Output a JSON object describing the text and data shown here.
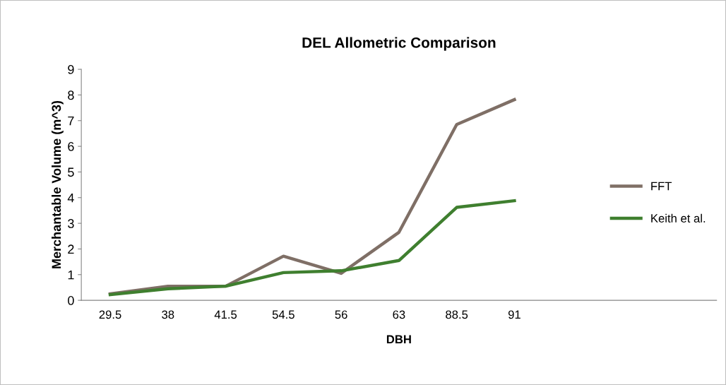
{
  "chart_data": {
    "type": "line",
    "title": "DEL Allometric Comparison",
    "xlabel": "DBH",
    "ylabel": "Merchantable Volume (m^3)",
    "categories": [
      "29.5",
      "38",
      "41.5",
      "54.5",
      "56",
      "63",
      "88.5",
      "91",
      null,
      null,
      null
    ],
    "series": [
      {
        "name": "FFT",
        "color": "#7f6f66",
        "values": [
          0.25,
          0.55,
          0.55,
          1.72,
          1.05,
          2.65,
          6.85,
          7.82,
          null,
          null,
          null
        ]
      },
      {
        "name": "Keith et al.",
        "color": "#3f7f2f",
        "values": [
          0.22,
          0.45,
          0.55,
          1.08,
          1.15,
          1.55,
          3.62,
          3.88,
          null,
          null,
          null
        ]
      }
    ],
    "ylim": [
      0,
      9
    ],
    "yticks": [
      0,
      1,
      2,
      3,
      4,
      5,
      6,
      7,
      8,
      9
    ],
    "grid": false,
    "legend": "right",
    "marker": "none",
    "line_style": "solid"
  }
}
